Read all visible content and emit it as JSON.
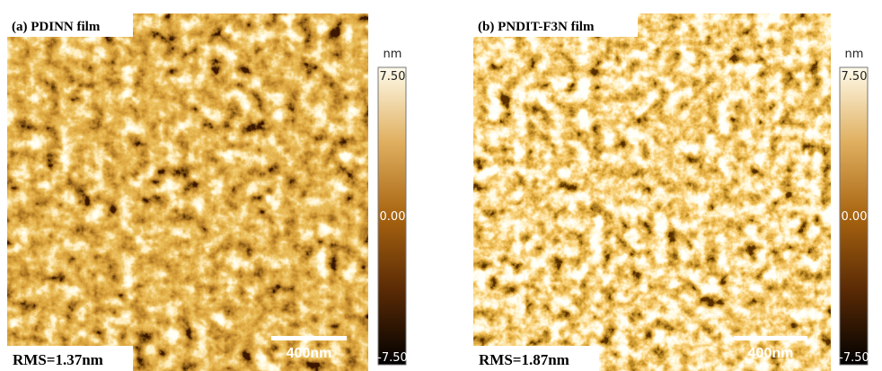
{
  "panels": [
    {
      "label": "(a) PDINN film",
      "rms": "RMS=1.37nm",
      "scale_bar": "400nm",
      "colorbar": {
        "unit": "nm",
        "ticks": [
          "7.50",
          "0.00",
          "-7.50"
        ]
      }
    },
    {
      "label": "(b) PNDIT-F3N film",
      "rms": "RMS=1.87nm",
      "scale_bar": "400nm",
      "colorbar": {
        "unit": "nm",
        "ticks": [
          "7.50",
          "0.00",
          "-7.50"
        ]
      }
    }
  ]
}
